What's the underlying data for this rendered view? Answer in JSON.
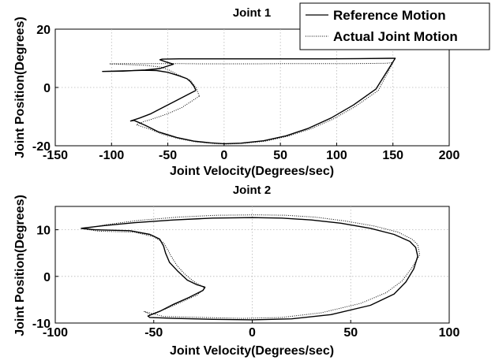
{
  "chart_data": [
    {
      "type": "line",
      "title": "Joint 1",
      "xlabel": "Joint Velocity(Degrees/sec)",
      "ylabel": "Joint Position(Degrees)",
      "xlim": [
        -150,
        200
      ],
      "ylim": [
        -20,
        20
      ],
      "xticks": [
        -150,
        -100,
        -50,
        0,
        50,
        100,
        150,
        200
      ],
      "yticks": [
        -20,
        0,
        20
      ],
      "grid": true,
      "legend": "top-right",
      "series": [
        {
          "name": "Reference Motion",
          "color": "#000000",
          "dash": "solid",
          "x": [
            -25,
            -30,
            -45,
            -55,
            -65,
            -75,
            -83,
            -80,
            -70,
            -58,
            -42,
            -27,
            -12,
            0,
            15,
            35,
            55,
            75,
            95,
            115,
            135,
            152,
            148,
            120,
            90,
            60,
            30,
            0,
            -20,
            -40,
            -55,
            -57,
            -52,
            -45,
            -57,
            -70,
            -80,
            -85,
            -90,
            -108,
            -90,
            -70,
            -60,
            -50,
            -40,
            -33,
            -30,
            -27,
            -25
          ],
          "y": [
            -1,
            -2,
            -5,
            -7,
            -9,
            -10.5,
            -11.5,
            -11.3,
            -13,
            -15.3,
            -17.2,
            -18.4,
            -19,
            -19.3,
            -19.1,
            -18.3,
            -16.6,
            -14,
            -10.5,
            -6,
            -0.5,
            10,
            10,
            9.9,
            9.8,
            9.8,
            9.8,
            9.8,
            9.8,
            9.8,
            9.7,
            9.5,
            8.8,
            8,
            6.5,
            6,
            5.8,
            5.7,
            5.6,
            5.5,
            5.7,
            5.9,
            5.8,
            5.2,
            4,
            3,
            2,
            0.5,
            -1
          ]
        },
        {
          "name": "Actual Joint Motion",
          "color": "#000000",
          "dash": "dotted",
          "x": [
            -22,
            -26,
            -38,
            -50,
            -62,
            -72,
            -78,
            -75,
            -66,
            -55,
            -40,
            -25,
            -10,
            2,
            17,
            37,
            57,
            77,
            97,
            117,
            137,
            150,
            144,
            118,
            88,
            58,
            28,
            -2,
            -22,
            -42,
            -62,
            -85,
            -102,
            -70,
            -56,
            -49,
            -42,
            -36,
            -30,
            -25,
            -22
          ],
          "y": [
            -3,
            -4,
            -7,
            -9,
            -10.6,
            -11.8,
            -12.8,
            -13.2,
            -14.3,
            -16,
            -17.6,
            -18.7,
            -19.2,
            -19.4,
            -19.2,
            -18.4,
            -16.7,
            -14.2,
            -10.8,
            -6.4,
            -1,
            8.5,
            8.3,
            8.2,
            8.2,
            8.2,
            8.1,
            8.1,
            8.1,
            8.2,
            8.2,
            8.2,
            8.1,
            7.6,
            7,
            6,
            4.5,
            3.5,
            2.5,
            0,
            -3
          ]
        }
      ]
    },
    {
      "type": "line",
      "title": "Joint 2",
      "xlabel": "Joint Velocity(Degrees/sec)",
      "ylabel": "Joint Position(Degrees)",
      "xlim": [
        -100,
        100
      ],
      "ylim": [
        -10,
        15
      ],
      "xticks": [
        -100,
        -50,
        0,
        50,
        100
      ],
      "yticks": [
        -10,
        0,
        10
      ],
      "grid": true,
      "series": [
        {
          "name": "Reference Motion",
          "color": "#000000",
          "dash": "solid",
          "x": [
            -87,
            -80,
            -62,
            -52,
            -47,
            -45,
            -44,
            -42,
            -38,
            -33,
            -28,
            -24,
            -25,
            -32,
            -40,
            -47,
            -53,
            -52,
            -40,
            -20,
            0,
            20,
            40,
            60,
            72,
            78,
            82,
            84,
            83,
            80,
            72,
            60,
            45,
            30,
            15,
            0,
            -20,
            -40,
            -60,
            -75,
            -87
          ],
          "y": [
            10.3,
            10,
            9.8,
            9,
            8,
            6.5,
            5,
            3,
            1.2,
            -0.8,
            -1.8,
            -2.3,
            -3,
            -4.5,
            -6,
            -7.5,
            -8.5,
            -8.8,
            -9,
            -9.2,
            -9.3,
            -9.1,
            -8.2,
            -6.2,
            -3.8,
            -1.2,
            1.6,
            4.3,
            6.2,
            7.5,
            9,
            10.3,
            11.4,
            12.1,
            12.5,
            12.6,
            12.5,
            12.1,
            11.5,
            10.9,
            10.3
          ]
        },
        {
          "name": "Actual Joint Motion",
          "color": "#000000",
          "dash": "dotted",
          "x": [
            -86,
            -78,
            -60,
            -50,
            -45,
            -43,
            -41,
            -38,
            -34,
            -30,
            -26,
            -24,
            -28,
            -36,
            -44,
            -52,
            -55,
            -45,
            -25,
            -5,
            15,
            35,
            55,
            68,
            76,
            81,
            85,
            84,
            81,
            74,
            62,
            47,
            32,
            17,
            2,
            -18,
            -38,
            -58,
            -74,
            -86
          ],
          "y": [
            10.2,
            9.7,
            9.5,
            8.5,
            7.2,
            5.8,
            4.2,
            2.2,
            0.4,
            -1,
            -2,
            -2.5,
            -4,
            -5.5,
            -7,
            -8.2,
            -7.5,
            -8.6,
            -8.8,
            -9,
            -8.8,
            -7.8,
            -5.8,
            -3.5,
            -1,
            1.8,
            4.6,
            6.8,
            8,
            9.5,
            10.8,
            11.9,
            12.7,
            13.1,
            13.2,
            13.1,
            12.7,
            12,
            11.1,
            10.2
          ]
        }
      ]
    }
  ]
}
